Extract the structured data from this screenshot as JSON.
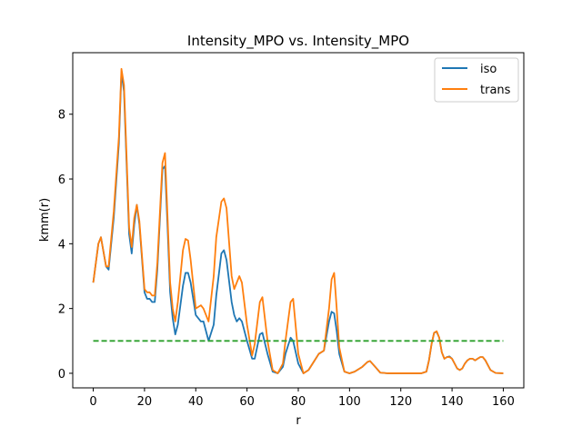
{
  "chart_data": {
    "type": "line",
    "title": "Intensity_MPO vs. Intensity_MPO",
    "xlabel": "r",
    "ylabel": "kmm(r)",
    "xlim": [
      -8,
      168
    ],
    "ylim": [
      -0.45,
      9.9
    ],
    "xticks": [
      0,
      20,
      40,
      60,
      80,
      100,
      120,
      140,
      160
    ],
    "yticks": [
      0,
      2,
      4,
      6,
      8
    ],
    "grid": false,
    "legend_position": "top-right",
    "series": [
      {
        "name": "iso",
        "color": "#1f77b4",
        "style": "solid",
        "x": [
          0,
          2,
          3,
          5,
          6,
          8,
          10,
          11,
          12,
          13,
          14,
          15,
          16,
          17,
          18,
          20,
          21,
          22,
          23,
          24,
          25,
          27,
          28,
          29,
          30,
          31,
          32,
          33,
          35,
          36,
          37,
          38,
          40,
          42,
          43,
          44,
          45,
          47,
          48,
          50,
          51,
          52,
          54,
          55,
          56,
          57,
          58,
          60,
          62,
          63,
          65,
          66,
          68,
          70,
          72,
          74,
          75,
          77,
          78,
          80,
          82,
          84,
          86,
          88,
          90,
          92,
          93,
          94,
          95,
          96,
          98,
          100,
          102,
          105,
          107,
          108,
          110,
          112,
          115,
          118,
          120,
          125,
          128,
          130,
          131,
          132,
          133,
          134,
          135,
          136,
          137,
          138,
          139,
          140,
          141,
          142,
          143,
          144,
          145,
          146,
          147,
          148,
          149,
          150,
          151,
          152,
          153,
          155,
          157,
          160
        ],
        "y": [
          2.8,
          4.0,
          4.2,
          3.3,
          3.2,
          4.8,
          7.1,
          9.3,
          8.7,
          6.5,
          4.3,
          3.7,
          4.6,
          5.2,
          4.6,
          2.5,
          2.3,
          2.3,
          2.2,
          2.2,
          3.2,
          6.3,
          6.4,
          4.5,
          2.5,
          1.7,
          1.2,
          1.5,
          2.7,
          3.1,
          3.1,
          2.8,
          1.8,
          1.6,
          1.6,
          1.3,
          1.0,
          1.5,
          2.4,
          3.7,
          3.8,
          3.5,
          2.2,
          1.8,
          1.6,
          1.7,
          1.6,
          1.0,
          0.45,
          0.45,
          1.2,
          1.25,
          0.6,
          0.05,
          0.0,
          0.2,
          0.6,
          1.1,
          1.0,
          0.3,
          0.0,
          0.1,
          0.35,
          0.6,
          0.7,
          1.6,
          1.9,
          1.85,
          1.3,
          0.6,
          0.05,
          0.0,
          0.05,
          0.2,
          0.35,
          0.38,
          0.2,
          0.02,
          0.0,
          0.0,
          0.0,
          0.0,
          0.0,
          0.05,
          0.4,
          0.9,
          1.25,
          1.28,
          1.1,
          0.65,
          0.45,
          0.5,
          0.52,
          0.45,
          0.3,
          0.15,
          0.1,
          0.15,
          0.3,
          0.4,
          0.45,
          0.45,
          0.4,
          0.45,
          0.5,
          0.5,
          0.4,
          0.1,
          0.01,
          0.0
        ]
      },
      {
        "name": "trans",
        "color": "#ff7f0e",
        "style": "solid",
        "x": [
          0,
          2,
          3,
          5,
          6,
          8,
          10,
          11,
          12,
          13,
          14,
          15,
          16,
          17,
          18,
          20,
          21,
          22,
          23,
          24,
          25,
          27,
          28,
          29,
          30,
          31,
          32,
          33,
          35,
          36,
          37,
          38,
          40,
          42,
          43,
          44,
          45,
          47,
          48,
          50,
          51,
          52,
          54,
          55,
          56,
          57,
          58,
          60,
          62,
          63,
          65,
          66,
          68,
          70,
          72,
          74,
          75,
          77,
          78,
          80,
          82,
          84,
          86,
          88,
          90,
          92,
          93,
          94,
          95,
          96,
          98,
          100,
          102,
          105,
          107,
          108,
          110,
          112,
          115,
          118,
          120,
          125,
          128,
          130,
          131,
          132,
          133,
          134,
          135,
          136,
          137,
          138,
          139,
          140,
          141,
          142,
          143,
          144,
          145,
          146,
          147,
          148,
          149,
          150,
          151,
          152,
          153,
          155,
          157,
          160
        ],
        "y": [
          2.8,
          4.0,
          4.2,
          3.3,
          3.3,
          5.0,
          7.3,
          9.4,
          8.9,
          6.7,
          4.5,
          3.9,
          4.8,
          5.2,
          4.7,
          2.6,
          2.5,
          2.5,
          2.4,
          2.4,
          3.4,
          6.5,
          6.8,
          4.8,
          2.8,
          2.0,
          1.6,
          2.2,
          3.8,
          4.15,
          4.1,
          3.5,
          2.0,
          2.1,
          2.0,
          1.8,
          1.6,
          3.0,
          4.2,
          5.3,
          5.4,
          5.1,
          3.0,
          2.6,
          2.8,
          3.0,
          2.8,
          1.5,
          0.55,
          0.9,
          2.2,
          2.35,
          1.0,
          0.1,
          0.0,
          0.3,
          1.0,
          2.2,
          2.3,
          0.6,
          0.0,
          0.1,
          0.35,
          0.6,
          0.7,
          2.0,
          2.9,
          3.1,
          2.0,
          0.8,
          0.05,
          0.0,
          0.05,
          0.2,
          0.35,
          0.38,
          0.2,
          0.02,
          0.0,
          0.0,
          0.0,
          0.0,
          0.0,
          0.05,
          0.4,
          0.9,
          1.25,
          1.3,
          1.1,
          0.65,
          0.45,
          0.5,
          0.5,
          0.45,
          0.3,
          0.15,
          0.1,
          0.15,
          0.3,
          0.4,
          0.45,
          0.45,
          0.4,
          0.45,
          0.5,
          0.5,
          0.4,
          0.1,
          0.01,
          0.0
        ]
      },
      {
        "color": "#2ca02c",
        "style": "dashed",
        "x": [
          0,
          160
        ],
        "y": [
          1,
          1
        ]
      }
    ]
  }
}
